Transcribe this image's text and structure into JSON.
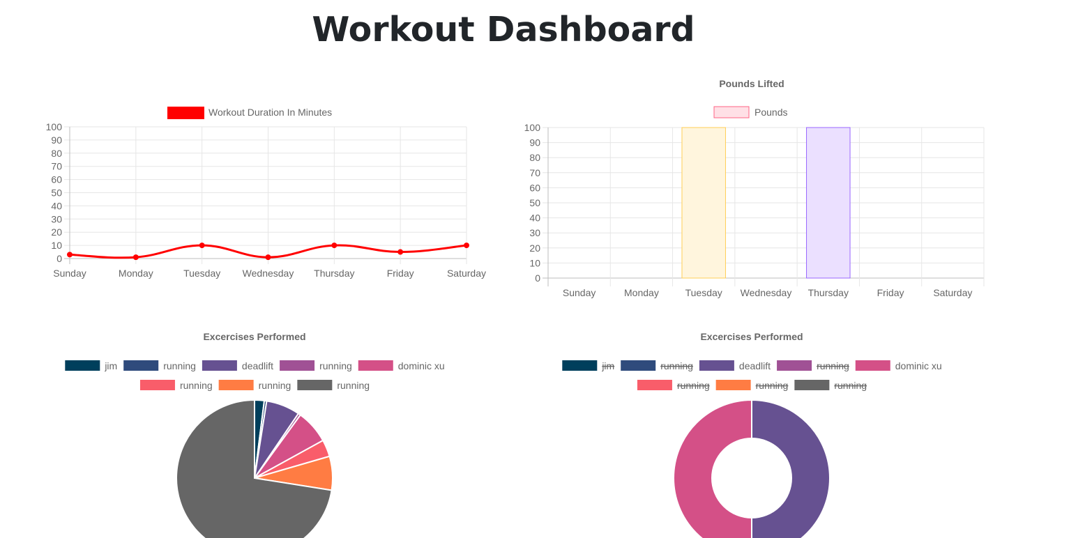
{
  "page": {
    "title": "Workout Dashboard"
  },
  "chart_data": [
    {
      "type": "line",
      "title": "",
      "categories": [
        "Sunday",
        "Monday",
        "Tuesday",
        "Wednesday",
        "Thursday",
        "Friday",
        "Saturday"
      ],
      "series": [
        {
          "name": "Workout Duration In Minutes",
          "values": [
            3,
            1,
            10,
            1,
            10,
            5,
            10
          ],
          "color": "#ff0000"
        }
      ],
      "ylim": [
        0,
        100
      ],
      "yticks": [
        0,
        10,
        20,
        30,
        40,
        50,
        60,
        70,
        80,
        90,
        100
      ],
      "grid": true,
      "legend": "top"
    },
    {
      "type": "bar",
      "title": "Pounds Lifted",
      "categories": [
        "Sunday",
        "Monday",
        "Tuesday",
        "Wednesday",
        "Thursday",
        "Friday",
        "Saturday"
      ],
      "series": [
        {
          "name": "Pounds",
          "values": [
            0,
            0,
            100,
            0,
            100,
            0,
            0
          ]
        }
      ],
      "bar_fills": [
        "#ffe0e6",
        "#dbecf8",
        "#fff5dd",
        "#dbf2f2",
        "#ebe0ff",
        "#fff5dd",
        "#f4f5f5"
      ],
      "bar_strokes": [
        "#ff6384",
        "#36a2eb",
        "#ffce56",
        "#4bc0c0",
        "#9966ff",
        "#ff9f40",
        "#c9cbcf"
      ],
      "legend_fill": "#ffe0e6",
      "legend_stroke": "#ff6384",
      "ylim": [
        0,
        100
      ],
      "yticks": [
        0,
        10,
        20,
        30,
        40,
        50,
        60,
        70,
        80,
        90,
        100
      ],
      "grid": true,
      "legend": "top"
    },
    {
      "type": "pie",
      "title": "Excercises Performed",
      "labels": [
        "jim",
        "running",
        "deadlift",
        "running",
        "dominic xu",
        "running",
        "running",
        "running"
      ],
      "values": [
        2,
        0.5,
        7,
        0.5,
        7,
        3.5,
        7,
        72.5
      ],
      "hidden": [
        false,
        false,
        false,
        false,
        false,
        false,
        false,
        false
      ],
      "colors": [
        "#003f5c",
        "#2f4b7c",
        "#665191",
        "#a05195",
        "#d45087",
        "#f95d6a",
        "#ff7c43",
        "#666666"
      ],
      "legend": "top"
    },
    {
      "type": "pie",
      "title": "Excercises Performed",
      "variant": "doughnut",
      "labels": [
        "jim",
        "running",
        "deadlift",
        "running",
        "dominic xu",
        "running",
        "running",
        "running"
      ],
      "values": [
        0,
        0,
        50,
        0,
        50,
        0,
        0,
        0
      ],
      "hidden": [
        true,
        true,
        false,
        true,
        false,
        true,
        true,
        true
      ],
      "colors": [
        "#003f5c",
        "#2f4b7c",
        "#665191",
        "#a05195",
        "#d45087",
        "#f95d6a",
        "#ff7c43",
        "#666666"
      ],
      "legend": "top"
    }
  ]
}
